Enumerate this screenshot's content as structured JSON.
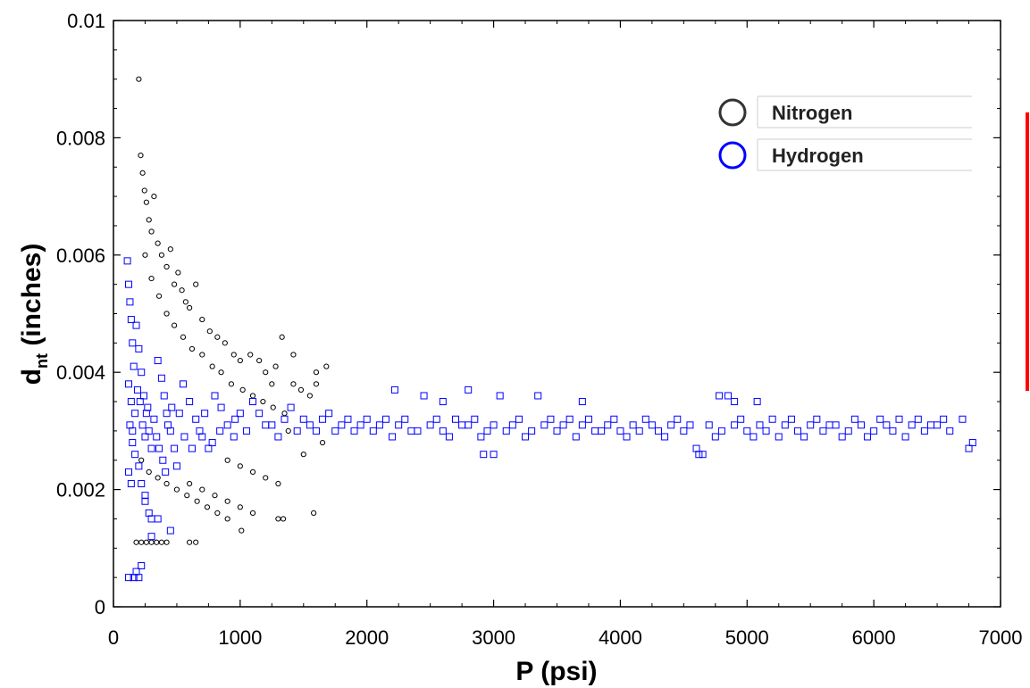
{
  "chart_data": {
    "type": "scatter",
    "title": "",
    "xlabel": "P (psi)",
    "ylabel_main": "d",
    "ylabel_sub": "nt",
    "ylabel_rest": " (inches)",
    "xlim": [
      0,
      7000
    ],
    "ylim": [
      0,
      0.01
    ],
    "x_ticks": [
      "0",
      "1000",
      "2000",
      "3000",
      "4000",
      "5000",
      "6000",
      "7000"
    ],
    "y_ticks": [
      "0",
      "0.002",
      "0.004",
      "0.006",
      "0.008",
      "0.01"
    ],
    "grid": false,
    "legend_position": "top-right",
    "series": [
      {
        "name": "Nitrogen",
        "marker": "circle",
        "color": "#000000",
        "legend_color": "#333333",
        "points": [
          [
            200,
            0.009
          ],
          [
            215,
            0.0077
          ],
          [
            230,
            0.0074
          ],
          [
            245,
            0.0071
          ],
          [
            260,
            0.0069
          ],
          [
            280,
            0.0066
          ],
          [
            300,
            0.0064
          ],
          [
            320,
            0.007
          ],
          [
            350,
            0.0062
          ],
          [
            380,
            0.006
          ],
          [
            420,
            0.0058
          ],
          [
            450,
            0.0061
          ],
          [
            480,
            0.0055
          ],
          [
            510,
            0.0057
          ],
          [
            540,
            0.0054
          ],
          [
            570,
            0.0052
          ],
          [
            600,
            0.0051
          ],
          [
            650,
            0.0055
          ],
          [
            700,
            0.0049
          ],
          [
            760,
            0.0047
          ],
          [
            820,
            0.0046
          ],
          [
            880,
            0.0045
          ],
          [
            950,
            0.0043
          ],
          [
            1000,
            0.0042
          ],
          [
            1080,
            0.0043
          ],
          [
            1150,
            0.0042
          ],
          [
            1200,
            0.004
          ],
          [
            1280,
            0.0041
          ],
          [
            1330,
            0.0046
          ],
          [
            1420,
            0.0038
          ],
          [
            1480,
            0.0037
          ],
          [
            1550,
            0.0036
          ],
          [
            1600,
            0.0038
          ],
          [
            1680,
            0.0041
          ],
          [
            250,
            0.006
          ],
          [
            300,
            0.0056
          ],
          [
            360,
            0.0053
          ],
          [
            420,
            0.005
          ],
          [
            480,
            0.0048
          ],
          [
            550,
            0.0046
          ],
          [
            620,
            0.0044
          ],
          [
            700,
            0.0043
          ],
          [
            780,
            0.0041
          ],
          [
            850,
            0.004
          ],
          [
            930,
            0.0038
          ],
          [
            1020,
            0.0037
          ],
          [
            1100,
            0.0036
          ],
          [
            1180,
            0.0035
          ],
          [
            1260,
            0.0034
          ],
          [
            1350,
            0.0033
          ],
          [
            220,
            0.0025
          ],
          [
            280,
            0.0023
          ],
          [
            350,
            0.0022
          ],
          [
            420,
            0.0021
          ],
          [
            500,
            0.002
          ],
          [
            580,
            0.0019
          ],
          [
            660,
            0.0018
          ],
          [
            740,
            0.0017
          ],
          [
            820,
            0.0016
          ],
          [
            900,
            0.0015
          ],
          [
            1010,
            0.0013
          ],
          [
            600,
            0.0021
          ],
          [
            700,
            0.002
          ],
          [
            800,
            0.0019
          ],
          [
            900,
            0.0018
          ],
          [
            1000,
            0.0017
          ],
          [
            1100,
            0.0016
          ],
          [
            900,
            0.0025
          ],
          [
            1000,
            0.0024
          ],
          [
            1100,
            0.0023
          ],
          [
            1200,
            0.0022
          ],
          [
            1300,
            0.0021
          ],
          [
            1300,
            0.0015
          ],
          [
            1340,
            0.0015
          ],
          [
            1380,
            0.003
          ],
          [
            1500,
            0.0026
          ],
          [
            1580,
            0.0016
          ],
          [
            1650,
            0.0028
          ],
          [
            180,
            0.0011
          ],
          [
            220,
            0.0011
          ],
          [
            260,
            0.0011
          ],
          [
            300,
            0.0011
          ],
          [
            340,
            0.0011
          ],
          [
            380,
            0.0011
          ],
          [
            420,
            0.0011
          ],
          [
            600,
            0.0011
          ],
          [
            650,
            0.0011
          ],
          [
            1250,
            0.0038
          ],
          [
            1420,
            0.0043
          ],
          [
            1600,
            0.004
          ]
        ]
      },
      {
        "name": "Hydrogen",
        "marker": "square",
        "color": "#0000ff",
        "legend_color": "#0000ff",
        "points": [
          [
            110,
            0.0059
          ],
          [
            120,
            0.0055
          ],
          [
            130,
            0.0052
          ],
          [
            140,
            0.0049
          ],
          [
            150,
            0.0045
          ],
          [
            160,
            0.0041
          ],
          [
            120,
            0.0038
          ],
          [
            140,
            0.0035
          ],
          [
            130,
            0.0031
          ],
          [
            150,
            0.0028
          ],
          [
            170,
            0.0026
          ],
          [
            120,
            0.0023
          ],
          [
            140,
            0.0021
          ],
          [
            180,
            0.0048
          ],
          [
            200,
            0.0044
          ],
          [
            220,
            0.004
          ],
          [
            240,
            0.0036
          ],
          [
            260,
            0.0033
          ],
          [
            280,
            0.003
          ],
          [
            300,
            0.0027
          ],
          [
            200,
            0.0024
          ],
          [
            220,
            0.0021
          ],
          [
            250,
            0.0018
          ],
          [
            280,
            0.0016
          ],
          [
            300,
            0.0015
          ],
          [
            350,
            0.0042
          ],
          [
            380,
            0.0039
          ],
          [
            400,
            0.0036
          ],
          [
            420,
            0.0033
          ],
          [
            450,
            0.003
          ],
          [
            480,
            0.0027
          ],
          [
            500,
            0.0024
          ],
          [
            550,
            0.0038
          ],
          [
            600,
            0.0035
          ],
          [
            650,
            0.0032
          ],
          [
            700,
            0.0029
          ],
          [
            750,
            0.0027
          ],
          [
            800,
            0.0036
          ],
          [
            850,
            0.0034
          ],
          [
            900,
            0.0031
          ],
          [
            950,
            0.0029
          ],
          [
            1000,
            0.0033
          ],
          [
            1100,
            0.0035
          ],
          [
            1200,
            0.0031
          ],
          [
            1300,
            0.0029
          ],
          [
            1400,
            0.0034
          ],
          [
            1500,
            0.0032
          ],
          [
            1600,
            0.003
          ],
          [
            1700,
            0.0033
          ],
          [
            1800,
            0.0031
          ],
          [
            1900,
            0.003
          ],
          [
            2000,
            0.0032
          ],
          [
            2100,
            0.0031
          ],
          [
            2200,
            0.0029
          ],
          [
            2300,
            0.0032
          ],
          [
            2400,
            0.003
          ],
          [
            2500,
            0.0031
          ],
          [
            2600,
            0.003
          ],
          [
            2700,
            0.0032
          ],
          [
            2800,
            0.0031
          ],
          [
            2900,
            0.0029
          ],
          [
            3000,
            0.0031
          ],
          [
            3100,
            0.003
          ],
          [
            3200,
            0.0032
          ],
          [
            3300,
            0.003
          ],
          [
            3400,
            0.0031
          ],
          [
            3500,
            0.003
          ],
          [
            3600,
            0.0032
          ],
          [
            3700,
            0.0031
          ],
          [
            3800,
            0.003
          ],
          [
            3900,
            0.0031
          ],
          [
            4000,
            0.003
          ],
          [
            4100,
            0.0031
          ],
          [
            4200,
            0.0032
          ],
          [
            4300,
            0.003
          ],
          [
            4400,
            0.0031
          ],
          [
            4500,
            0.003
          ],
          [
            4600,
            0.0027
          ],
          [
            4700,
            0.0031
          ],
          [
            4800,
            0.003
          ],
          [
            4900,
            0.0031
          ],
          [
            5000,
            0.003
          ],
          [
            5100,
            0.0031
          ],
          [
            5200,
            0.0032
          ],
          [
            5300,
            0.0031
          ],
          [
            5400,
            0.003
          ],
          [
            5500,
            0.0031
          ],
          [
            5600,
            0.003
          ],
          [
            5700,
            0.0031
          ],
          [
            5800,
            0.003
          ],
          [
            5900,
            0.0031
          ],
          [
            6000,
            0.003
          ],
          [
            6100,
            0.0031
          ],
          [
            6200,
            0.0032
          ],
          [
            6300,
            0.0031
          ],
          [
            6400,
            0.003
          ],
          [
            6500,
            0.0031
          ],
          [
            6600,
            0.003
          ],
          [
            6700,
            0.0032
          ],
          [
            6750,
            0.0027
          ],
          [
            6780,
            0.0028
          ],
          [
            2220,
            0.0037
          ],
          [
            2450,
            0.0036
          ],
          [
            2600,
            0.0035
          ],
          [
            2800,
            0.0037
          ],
          [
            3050,
            0.0036
          ],
          [
            3350,
            0.0036
          ],
          [
            3700,
            0.0035
          ],
          [
            4780,
            0.0036
          ],
          [
            4850,
            0.0036
          ],
          [
            4900,
            0.0035
          ],
          [
            5080,
            0.0035
          ],
          [
            4620,
            0.0026
          ],
          [
            4650,
            0.0026
          ],
          [
            3000,
            0.0026
          ],
          [
            2920,
            0.0026
          ],
          [
            120,
            0.0005
          ],
          [
            160,
            0.0005
          ],
          [
            200,
            0.0005
          ],
          [
            180,
            0.0006
          ],
          [
            220,
            0.0007
          ],
          [
            300,
            0.0012
          ],
          [
            350,
            0.0015
          ],
          [
            450,
            0.0013
          ],
          [
            250,
            0.0019
          ],
          [
            150,
            0.003
          ],
          [
            170,
            0.0033
          ],
          [
            190,
            0.0037
          ],
          [
            210,
            0.0035
          ],
          [
            230,
            0.0031
          ],
          [
            250,
            0.0029
          ],
          [
            270,
            0.0034
          ],
          [
            320,
            0.0032
          ],
          [
            340,
            0.0029
          ],
          [
            360,
            0.0027
          ],
          [
            390,
            0.0025
          ],
          [
            410,
            0.0023
          ],
          [
            430,
            0.0031
          ],
          [
            460,
            0.0034
          ],
          [
            520,
            0.0033
          ],
          [
            560,
            0.0029
          ],
          [
            620,
            0.0027
          ],
          [
            680,
            0.003
          ],
          [
            720,
            0.0033
          ],
          [
            780,
            0.0028
          ],
          [
            840,
            0.003
          ],
          [
            960,
            0.0032
          ],
          [
            1050,
            0.003
          ],
          [
            1150,
            0.0033
          ],
          [
            1250,
            0.0031
          ],
          [
            1350,
            0.0032
          ],
          [
            1450,
            0.003
          ],
          [
            1550,
            0.0031
          ],
          [
            1650,
            0.0032
          ],
          [
            1750,
            0.003
          ],
          [
            1850,
            0.0032
          ],
          [
            1950,
            0.0031
          ],
          [
            2050,
            0.003
          ],
          [
            2150,
            0.0032
          ],
          [
            2250,
            0.0031
          ],
          [
            2350,
            0.003
          ],
          [
            2550,
            0.0032
          ],
          [
            2650,
            0.0029
          ],
          [
            2750,
            0.0031
          ],
          [
            2850,
            0.0032
          ],
          [
            2950,
            0.003
          ],
          [
            3150,
            0.0031
          ],
          [
            3250,
            0.0029
          ],
          [
            3450,
            0.0032
          ],
          [
            3550,
            0.0031
          ],
          [
            3650,
            0.0029
          ],
          [
            3750,
            0.0032
          ],
          [
            3850,
            0.003
          ],
          [
            3950,
            0.0032
          ],
          [
            4050,
            0.0029
          ],
          [
            4150,
            0.003
          ],
          [
            4250,
            0.0031
          ],
          [
            4350,
            0.0029
          ],
          [
            4450,
            0.0032
          ],
          [
            4550,
            0.0031
          ],
          [
            4750,
            0.0029
          ],
          [
            4950,
            0.0032
          ],
          [
            5050,
            0.0029
          ],
          [
            5150,
            0.003
          ],
          [
            5250,
            0.0029
          ],
          [
            5350,
            0.0032
          ],
          [
            5450,
            0.0029
          ],
          [
            5550,
            0.0032
          ],
          [
            5650,
            0.0031
          ],
          [
            5750,
            0.0029
          ],
          [
            5850,
            0.0032
          ],
          [
            5950,
            0.0029
          ],
          [
            6050,
            0.0032
          ],
          [
            6150,
            0.003
          ],
          [
            6250,
            0.0029
          ],
          [
            6350,
            0.0032
          ],
          [
            6450,
            0.0031
          ],
          [
            6550,
            0.0032
          ]
        ]
      }
    ]
  },
  "annotations": {
    "bar_color": "#ff0000"
  }
}
